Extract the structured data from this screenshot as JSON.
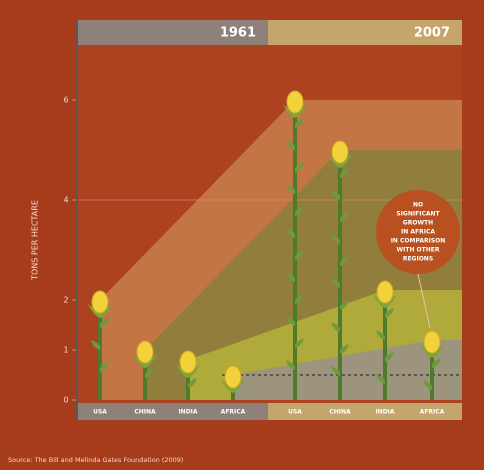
{
  "chart_data": {
    "type": "pictorial-bar",
    "y_label": "TONS PER HECTARE",
    "categories": [
      "USA",
      "CHINA",
      "INDIA",
      "AFRICA"
    ],
    "series": [
      {
        "name": "1961",
        "color": "#8d817a",
        "values": [
          2.0,
          1.0,
          0.8,
          0.5
        ]
      },
      {
        "name": "2007",
        "color": "#c4a66c",
        "values": [
          6.0,
          5.0,
          2.2,
          1.2
        ]
      }
    ],
    "band_colors": [
      "#c47a48",
      "#8e7f3c",
      "#b3ae3c",
      "#9b9384"
    ],
    "ylim": [
      0,
      7
    ],
    "yticks": [
      0,
      1,
      2,
      4,
      6
    ],
    "reference_line": 4,
    "annotation": [
      "NO",
      "SIGNIFICANT",
      "GROWTH",
      "IN AFRICA",
      "IN COMPARISON",
      "WITH OTHER",
      "REGIONS"
    ],
    "source": "Source: The Bill and Melinda Gates Foundation (2009)"
  }
}
